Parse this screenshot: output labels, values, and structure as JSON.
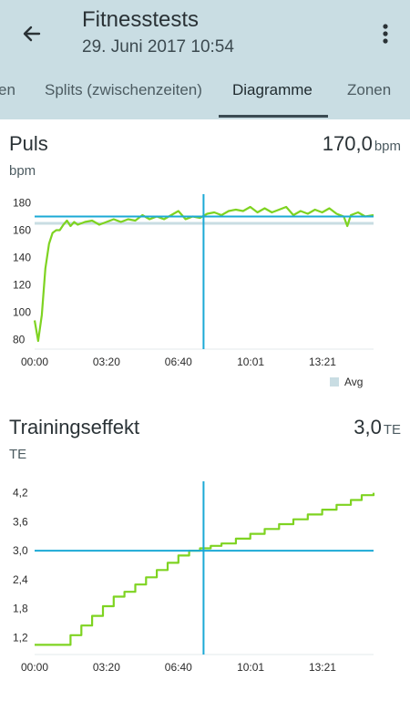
{
  "header": {
    "title": "Fitnesstests",
    "subtitle": "29. Juni 2017 10:54",
    "back_icon": "arrow-left-icon",
    "menu_icon": "more-vertical-icon"
  },
  "tabs": [
    {
      "label": "en",
      "active": false
    },
    {
      "label": "Splits (zwischenzeiten)",
      "active": false
    },
    {
      "label": "Diagramme",
      "active": true
    },
    {
      "label": "Zonen",
      "active": false
    }
  ],
  "colors": {
    "header_bg": "#c9dde3",
    "series": "#7ed321",
    "cursor": "#1ba9d6",
    "avg": "#c9dde3"
  },
  "pulse": {
    "title": "Puls",
    "value": "170,0",
    "unit": "bpm",
    "axis_unit": "bpm",
    "legend_label": "Avg"
  },
  "training": {
    "title": "Trainingseffekt",
    "value": "3,0",
    "unit": "TE",
    "axis_unit": "TE"
  },
  "chart_data": [
    {
      "type": "line",
      "title": "Puls",
      "ylabel": "bpm",
      "y_ticks": [
        180,
        160,
        140,
        120,
        100,
        80
      ],
      "y_tick_labels": [
        "180",
        "160",
        "140",
        "120",
        "100",
        "80"
      ],
      "x_ticks": [
        0,
        200,
        400,
        601,
        801
      ],
      "x_tick_labels": [
        "00:00",
        "03:20",
        "06:40",
        "10:01",
        "13:21"
      ],
      "xlim": [
        0,
        943
      ],
      "ylim": [
        73,
        185
      ],
      "cursor": {
        "x": 470,
        "y": 170
      },
      "avg": 165,
      "legend": [
        "Avg"
      ],
      "series": [
        {
          "x": [
            0,
            10,
            20,
            30,
            40,
            50,
            60,
            70,
            80,
            90,
            100,
            110,
            120,
            140,
            160,
            180,
            200,
            220,
            240,
            260,
            280,
            300,
            320,
            340,
            360,
            380,
            400,
            420,
            440,
            460,
            480,
            500,
            520,
            540,
            560,
            580,
            600,
            620,
            640,
            660,
            680,
            700,
            720,
            740,
            760,
            780,
            800,
            820,
            840,
            860,
            870,
            880,
            900,
            920,
            943
          ],
          "y": [
            94,
            79,
            98,
            132,
            150,
            158,
            160,
            160,
            164,
            167,
            163,
            166,
            164,
            166,
            167,
            164,
            166,
            168,
            166,
            168,
            167,
            171,
            168,
            170,
            168,
            171,
            174,
            168,
            170,
            169,
            172,
            173,
            171,
            174,
            175,
            174,
            177,
            173,
            176,
            173,
            175,
            177,
            171,
            174,
            172,
            175,
            173,
            176,
            172,
            170,
            163,
            171,
            173,
            170,
            171
          ]
        }
      ]
    },
    {
      "type": "line",
      "title": "Trainingseffekt",
      "ylabel": "TE",
      "y_ticks": [
        4.2,
        3.6,
        3.0,
        2.4,
        1.8,
        1.2
      ],
      "y_tick_labels": [
        "4,2",
        "3,6",
        "3,0",
        "2,4",
        "1,8",
        "1,2"
      ],
      "x_ticks": [
        0,
        200,
        400,
        601,
        801
      ],
      "x_tick_labels": [
        "00:00",
        "03:20",
        "06:40",
        "10:01",
        "13:21"
      ],
      "xlim": [
        0,
        943
      ],
      "ylim": [
        0.85,
        4.4
      ],
      "cursor": {
        "x": 470,
        "y": 3.0
      },
      "series": [
        {
          "x": [
            0,
            70,
            100,
            130,
            160,
            190,
            220,
            250,
            280,
            310,
            340,
            370,
            400,
            430,
            460,
            470,
            490,
            520,
            560,
            600,
            640,
            680,
            720,
            760,
            800,
            840,
            880,
            910,
            943
          ],
          "y": [
            1.05,
            1.05,
            1.25,
            1.45,
            1.65,
            1.85,
            2.05,
            2.15,
            2.3,
            2.45,
            2.6,
            2.75,
            2.9,
            3.0,
            3.05,
            3.05,
            3.1,
            3.15,
            3.25,
            3.35,
            3.45,
            3.55,
            3.65,
            3.75,
            3.85,
            3.95,
            4.05,
            4.15,
            4.2
          ]
        }
      ]
    }
  ]
}
